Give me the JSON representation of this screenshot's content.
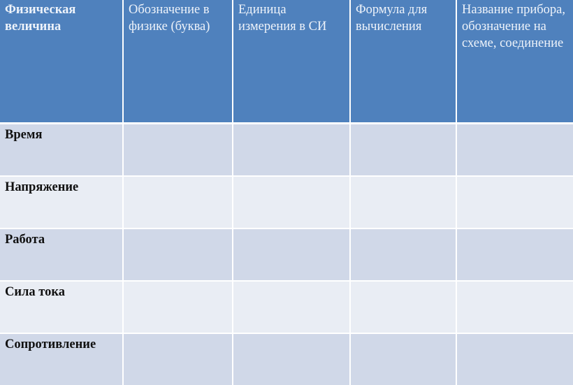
{
  "colors": {
    "header_bg": "#4f81bd",
    "row_odd_bg": "#d0d8e8",
    "row_even_bg": "#e9edf4"
  },
  "table": {
    "headers": [
      "Физическая величина",
      "Обозначение в физике (буква)",
      "Единица измерения в СИ",
      "Формула для вычисления",
      "Название прибора, обозначение на схеме, соединение"
    ],
    "rows": [
      {
        "label": "Время",
        "cells": [
          "",
          "",
          "",
          ""
        ]
      },
      {
        "label": "Напряжение",
        "cells": [
          "",
          "",
          "",
          ""
        ]
      },
      {
        "label": "Работа",
        "cells": [
          "",
          "",
          "",
          ""
        ]
      },
      {
        "label": "Сила тока",
        "cells": [
          "",
          "",
          "",
          ""
        ]
      },
      {
        "label": "Сопротивление",
        "cells": [
          "",
          "",
          "",
          ""
        ]
      }
    ]
  }
}
